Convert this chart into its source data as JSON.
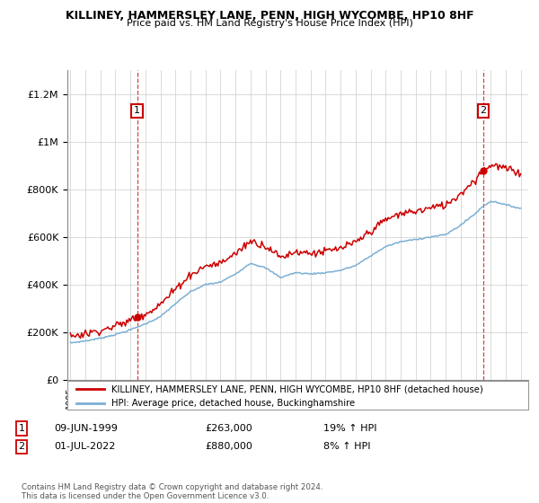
{
  "title": "KILLINEY, HAMMERSLEY LANE, PENN, HIGH WYCOMBE, HP10 8HF",
  "subtitle": "Price paid vs. HM Land Registry's House Price Index (HPI)",
  "ylabel_ticks": [
    "£0",
    "£200K",
    "£400K",
    "£600K",
    "£800K",
    "£1M",
    "£1.2M"
  ],
  "ytick_values": [
    0,
    200000,
    400000,
    600000,
    800000,
    1000000,
    1200000
  ],
  "ylim": [
    0,
    1300000
  ],
  "sale1_year": 1999.44,
  "sale1_price": 263000,
  "sale1_date_str": "09-JUN-1999",
  "sale1_pct": "19% ↑ HPI",
  "sale2_year": 2022.5,
  "sale2_price": 880000,
  "sale2_date_str": "01-JUL-2022",
  "sale2_pct": "8% ↑ HPI",
  "legend_property": "KILLINEY, HAMMERSLEY LANE, PENN, HIGH WYCOMBE, HP10 8HF (detached house)",
  "legend_hpi": "HPI: Average price, detached house, Buckinghamshire",
  "footer": "Contains HM Land Registry data © Crown copyright and database right 2024.\nThis data is licensed under the Open Government Licence v3.0.",
  "property_color": "#cc0000",
  "hpi_color": "#7bafd4",
  "dashed_line_color": "#cc0000",
  "background_color": "#ffffff",
  "grid_color": "#cccccc",
  "x_start_year": 1995,
  "x_end_year": 2025
}
